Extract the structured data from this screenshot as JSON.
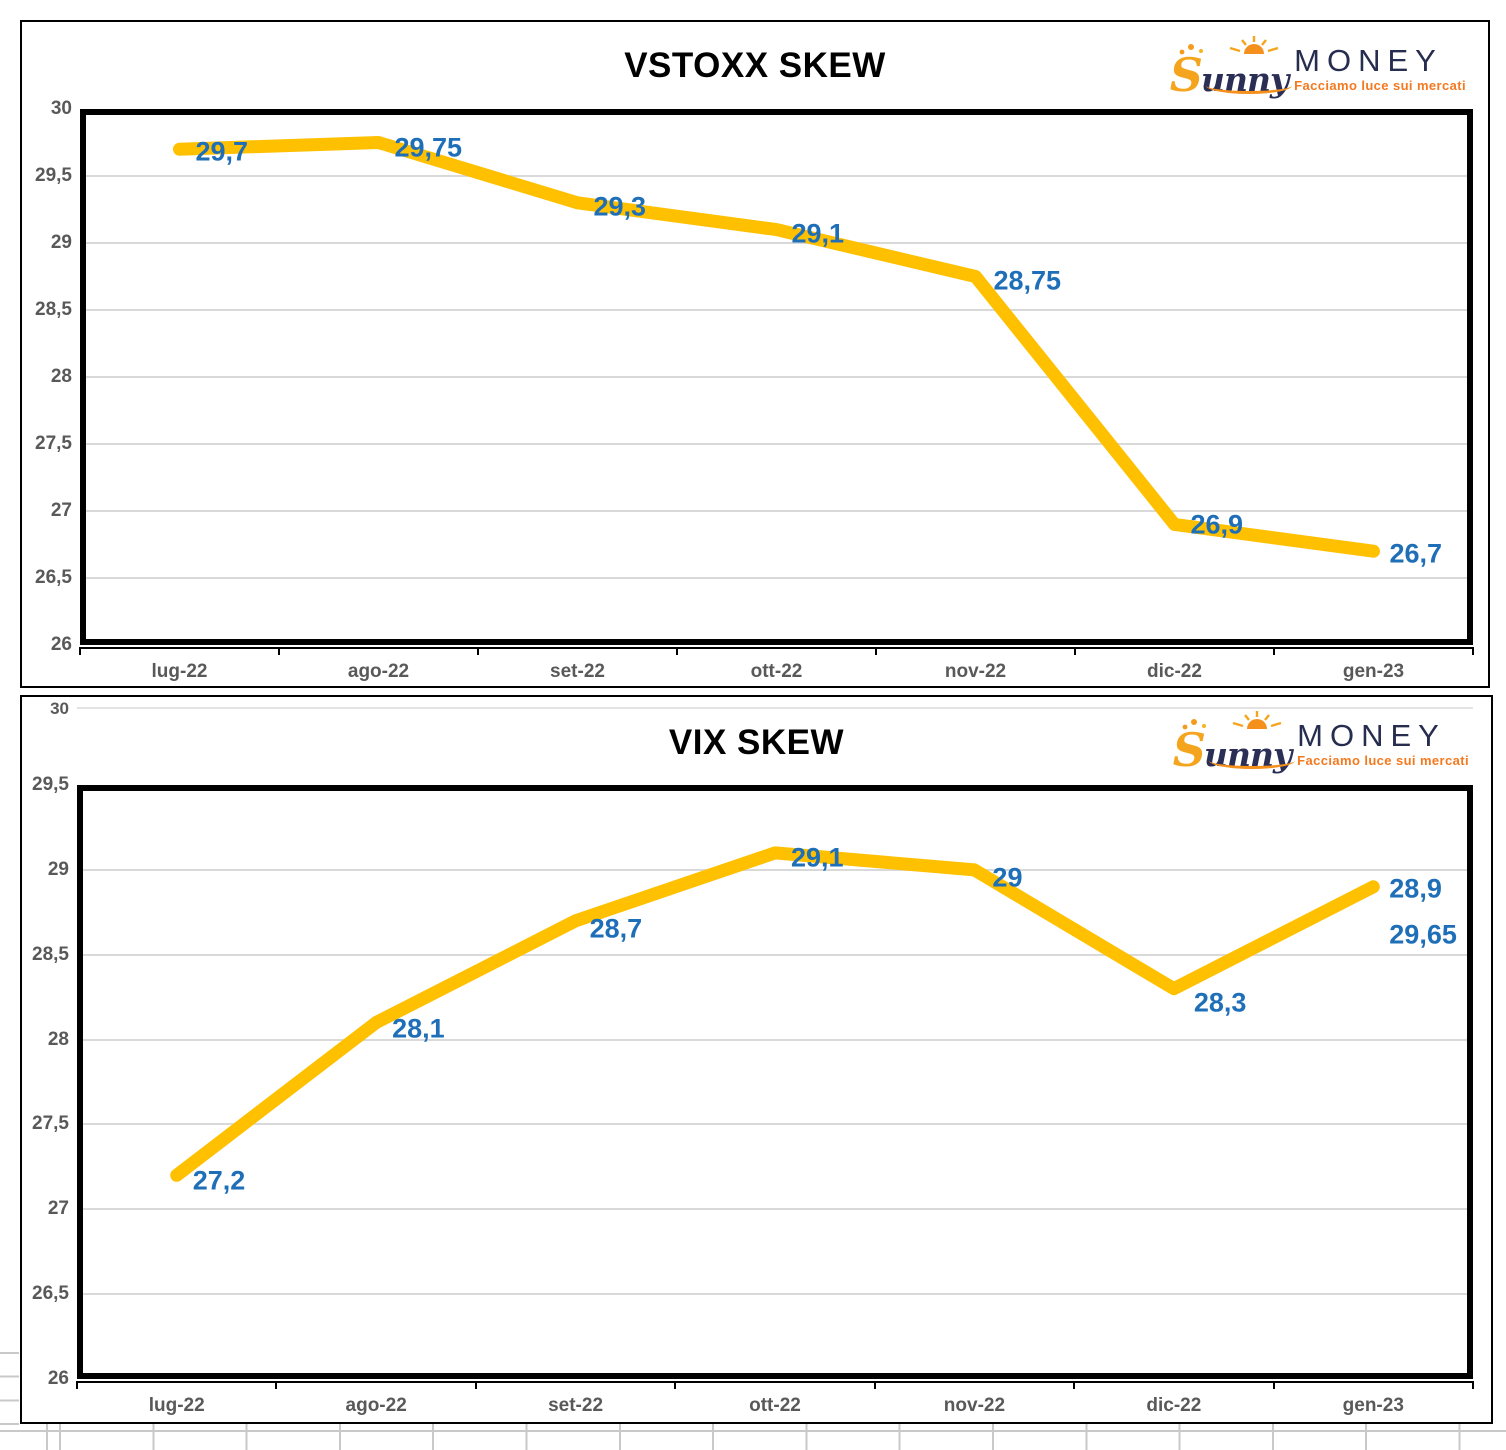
{
  "logo": {
    "s": "S",
    "unny": "unny",
    "money": "MONEY",
    "tagline": "Facciamo luce sui mercati"
  },
  "colors": {
    "line": "#FFC000",
    "point_label": "#1F6FB8",
    "axis_label": "#595959",
    "gridline": "#D9D9D9"
  },
  "chart_data": [
    {
      "type": "line",
      "title": "VSTOXX SKEW",
      "categories": [
        "lug-22",
        "ago-22",
        "set-22",
        "ott-22",
        "nov-22",
        "dic-22",
        "gen-23"
      ],
      "series": [
        {
          "name": "VSTOXX SKEW",
          "values": [
            29.7,
            29.75,
            29.3,
            29.1,
            28.75,
            26.9,
            26.7
          ]
        }
      ],
      "point_labels": [
        "29,7",
        "29,75",
        "29,3",
        "29,1",
        "28,75",
        "26,9",
        "26,7"
      ],
      "xlabel": "",
      "ylabel": "",
      "ylim": [
        26,
        30
      ],
      "ytick_labels": [
        "30",
        "29,5",
        "29",
        "28,5",
        "28",
        "27,5",
        "27",
        "26,5",
        "26"
      ],
      "grid": true,
      "legend": "none",
      "line_color": "#FFC000",
      "point_label_color": "#1F6FB8"
    },
    {
      "type": "line",
      "title": "VIX SKEW",
      "categories": [
        "lug-22",
        "ago-22",
        "set-22",
        "ott-22",
        "nov-22",
        "dic-22",
        "gen-23"
      ],
      "series": [
        {
          "name": "VIX SKEW",
          "values": [
            27.2,
            28.1,
            28.7,
            29.1,
            29.0,
            28.3,
            28.9
          ]
        }
      ],
      "point_labels": [
        "27,2",
        "28,1",
        "28,7",
        "29,1",
        "29",
        "28,3",
        "28,9"
      ],
      "xlabel": "",
      "ylabel": "",
      "ylim": [
        26,
        29.5
      ],
      "ytick_labels": [
        "29,5",
        "29",
        "28,5",
        "28",
        "27,5",
        "27",
        "26,5",
        "26"
      ],
      "extra_top_tick": {
        "label": "30"
      },
      "annotations": [
        {
          "text": "29,65",
          "anchor": 6
        }
      ],
      "grid": true,
      "legend": "none",
      "line_color": "#FFC000",
      "point_label_color": "#1F6FB8"
    }
  ]
}
